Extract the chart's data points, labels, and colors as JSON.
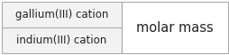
{
  "rows": [
    "gallium(III) cation",
    "indium(III) cation"
  ],
  "label": "molar mass",
  "border_color": "#aaaaaa",
  "divider_color": "#aaaaaa",
  "background_left": "#f2f2f2",
  "background_right": "#ffffff",
  "text_color": "#222222",
  "font_size": 8.5,
  "label_font_size": 10.5,
  "divx": 0.535
}
